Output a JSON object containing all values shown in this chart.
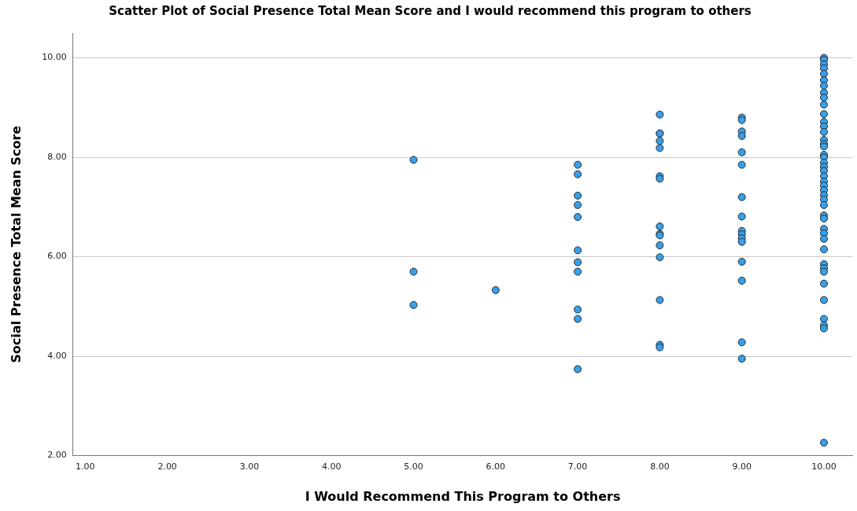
{
  "chart_data": {
    "type": "scatter",
    "title": "Scatter Plot of Social Presence Total Mean Score and I would recommend this program to others",
    "xlabel": "I Would Recommend This Program to Others",
    "ylabel": "Social Presence Total Mean Score",
    "xlim": [
      0.85,
      10.35
    ],
    "xticks": [
      {
        "value": 1,
        "label": "1.00"
      },
      {
        "value": 2,
        "label": "2.00"
      },
      {
        "value": 3,
        "label": "3.00"
      },
      {
        "value": 4,
        "label": "4.00"
      },
      {
        "value": 5,
        "label": "5.00"
      },
      {
        "value": 6,
        "label": "6.00"
      },
      {
        "value": 7,
        "label": "7.00"
      },
      {
        "value": 8,
        "label": "8.00"
      },
      {
        "value": 9,
        "label": "9.00"
      },
      {
        "value": 10,
        "label": "10.00"
      }
    ],
    "ylim": [
      2,
      10.5
    ],
    "yticks": [
      {
        "value": 2,
        "label": "2.00"
      },
      {
        "value": 4,
        "label": "4.00"
      },
      {
        "value": 6,
        "label": "6.00"
      },
      {
        "value": 8,
        "label": "8.00"
      },
      {
        "value": 10,
        "label": "10.00"
      }
    ],
    "grid": "y",
    "legend": false,
    "marker": "circle",
    "series": [
      {
        "color": "#3a9fe6",
        "x": [
          5,
          5,
          5,
          6,
          7,
          7,
          7,
          7,
          7,
          7,
          7,
          7,
          7,
          7,
          7,
          8,
          8,
          8,
          8,
          8,
          8,
          8,
          8,
          8,
          8,
          8,
          8,
          8,
          8,
          8,
          9,
          9,
          9,
          9,
          9,
          9,
          9,
          9,
          9,
          9,
          9,
          9,
          9,
          9,
          9,
          9,
          10,
          10,
          10,
          10,
          10,
          10,
          10,
          10,
          10,
          10,
          10,
          10,
          10,
          10,
          10,
          10,
          10,
          10,
          10,
          10,
          10,
          10,
          10,
          10,
          10,
          10,
          10,
          10,
          10,
          10,
          10,
          10,
          10,
          10,
          10,
          10,
          10,
          10,
          10,
          10,
          10,
          10,
          10,
          10
        ],
        "values": [
          7.95,
          5.7,
          5.03,
          5.33,
          7.85,
          7.66,
          7.23,
          7.04,
          6.8,
          6.13,
          5.89,
          5.7,
          4.94,
          4.75,
          3.74,
          8.86,
          8.48,
          8.48,
          8.33,
          8.19,
          7.62,
          7.57,
          6.61,
          6.46,
          6.43,
          6.23,
          5.99,
          5.13,
          4.23,
          4.18,
          8.8,
          8.75,
          8.52,
          8.43,
          8.1,
          7.85,
          7.2,
          6.81,
          6.52,
          6.45,
          6.37,
          6.3,
          5.9,
          5.52,
          4.28,
          3.95,
          10.0,
          9.96,
          9.87,
          9.79,
          9.68,
          9.55,
          9.44,
          9.3,
          9.2,
          9.06,
          8.87,
          8.71,
          8.62,
          8.51,
          8.35,
          8.27,
          8.22,
          8.05,
          8.0,
          7.89,
          7.81,
          7.73,
          7.62,
          7.51,
          7.43,
          7.34,
          7.24,
          7.15,
          7.04,
          6.83,
          6.77,
          6.56,
          6.47,
          6.36,
          6.15,
          5.85,
          5.77,
          5.7,
          5.46,
          5.13,
          4.75,
          4.62,
          4.56,
          2.26
        ]
      }
    ]
  }
}
